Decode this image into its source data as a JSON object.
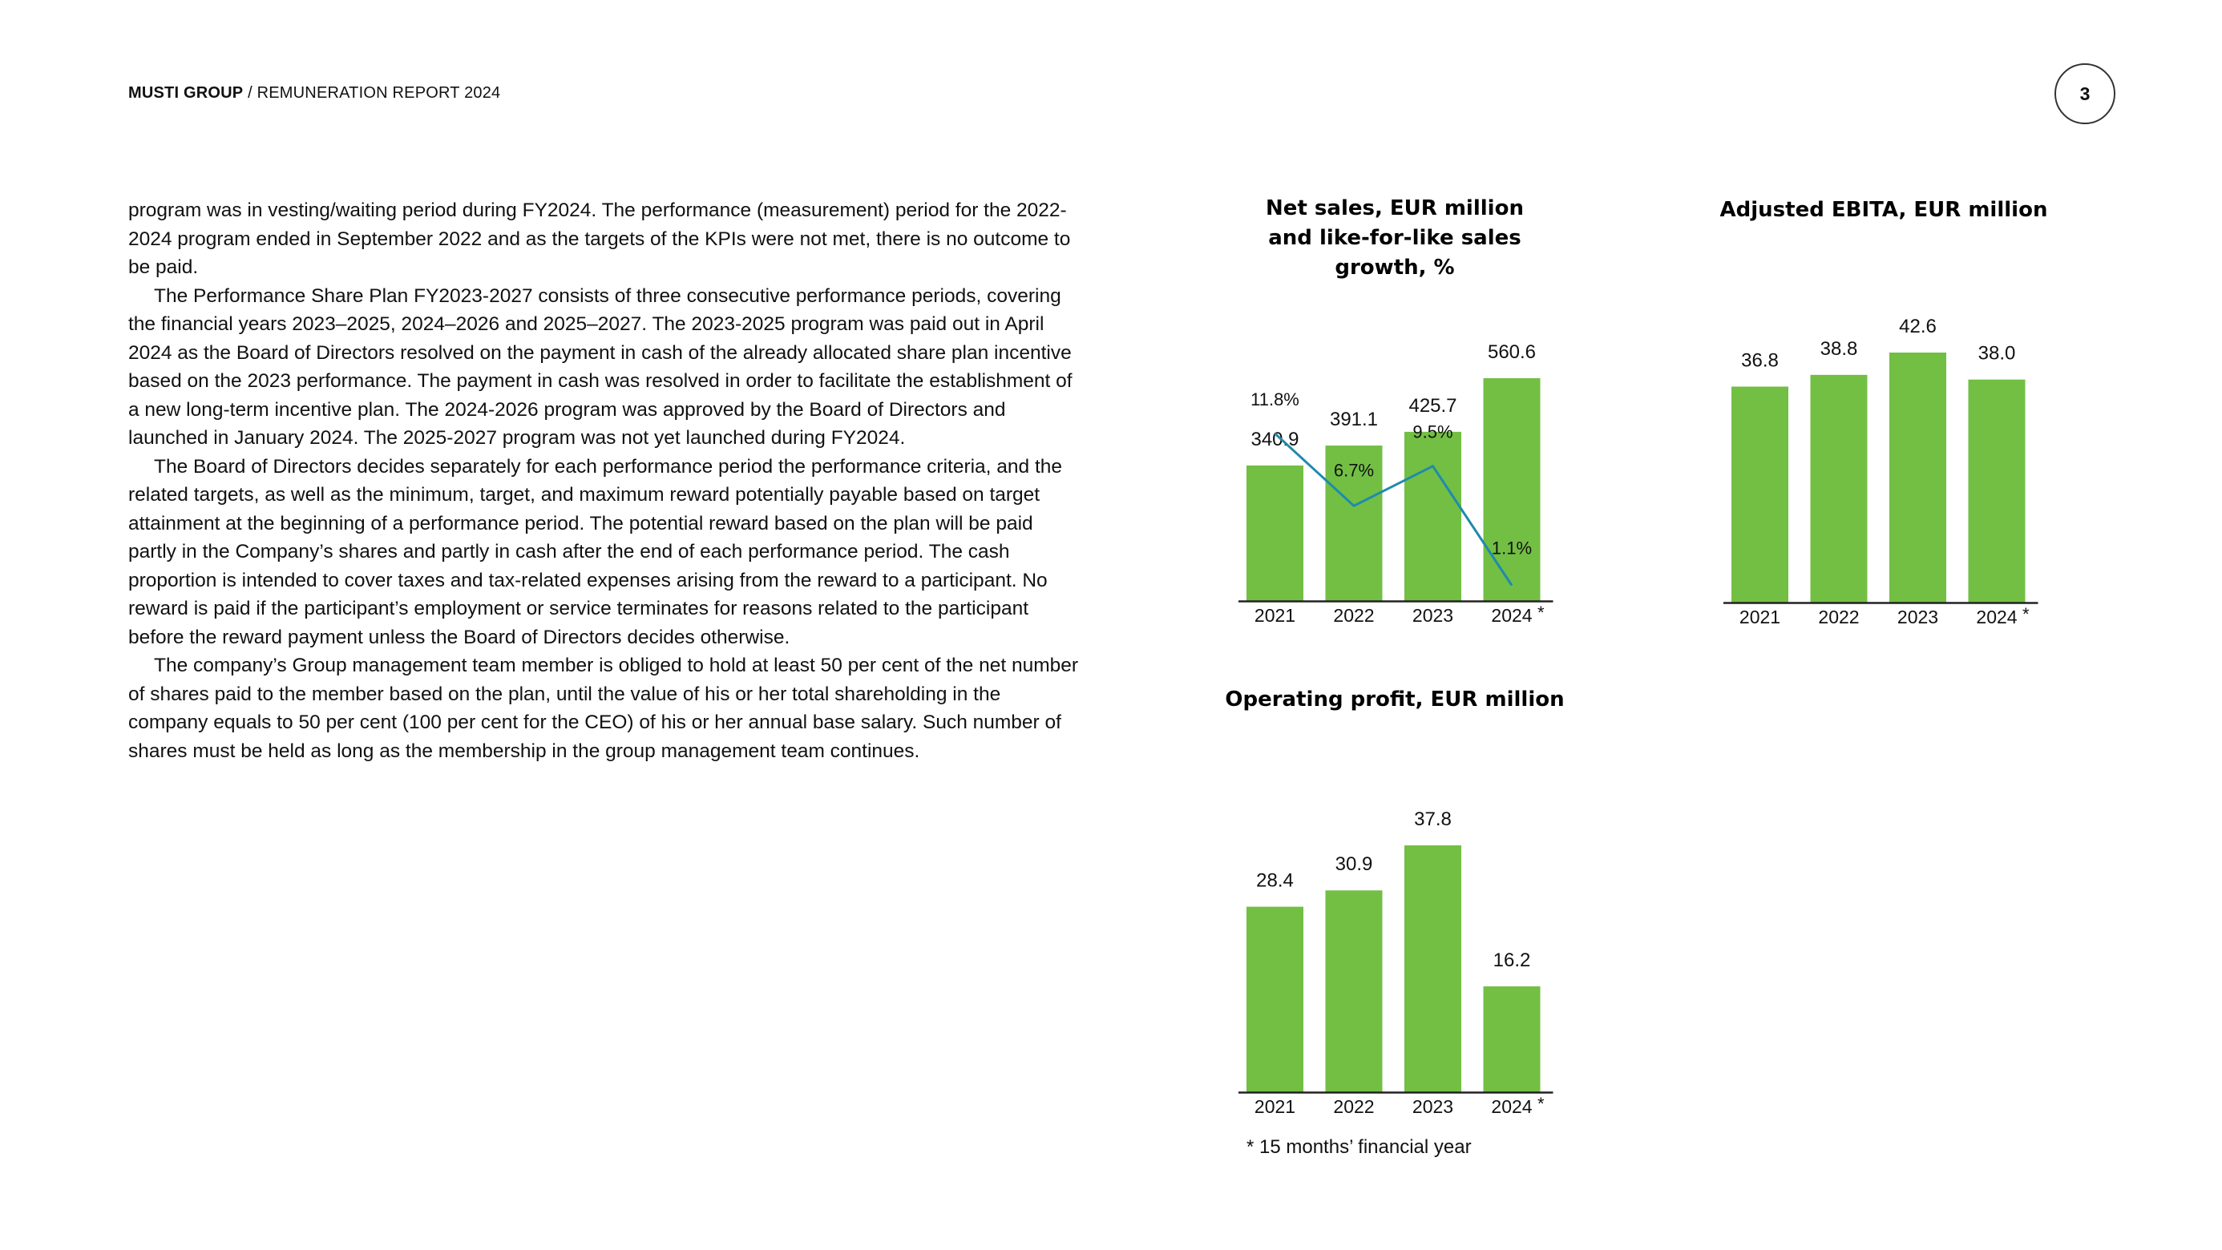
{
  "header": {
    "brand": "MUSTI GROUP",
    "separator": " / ",
    "title": "REMUNERATION REPORT 2024",
    "page_number": "3"
  },
  "body": {
    "p1": "program was in vesting/waiting period during FY2024. The performance (measurement) period for the 2022-2024 program ended in September 2022 and as the targets of the KPIs were not met, there is no outcome to be paid.",
    "p2": "The Performance Share Plan FY2023-2027 consists of three consecutive performance periods, covering the financial years 2023–2025, 2024–2026 and 2025–2027. The 2023-2025 program was paid out in April 2024 as the Board of Directors resolved on the payment in cash of the already allocated share plan incentive based on the 2023 performance. The payment in cash was resolved in order to facilitate the establishment of a new long-term incentive plan. The 2024-2026 program was approved by the Board of Directors and launched in January 2024.  The 2025-2027 program was not yet launched during FY2024.",
    "p3": "The Board of Directors decides separately for each performance period the performance criteria, and the related targets, as well as the minimum, target, and maximum reward potentially payable based on target attainment at the beginning of a performance period. The potential reward based on the plan will be paid partly in the Company’s shares and partly in cash after the end of each performance period. The cash proportion is intended to cover taxes and tax-related expenses arising from the reward to a participant. No reward is paid if the participant’s employment or service terminates for reasons related to the participant before the reward payment unless the Board of Directors decides otherwise.",
    "p4": "The company’s Group management team member is obliged to hold at least 50 per cent of the net number of shares paid to the member based on the plan, until the value of his or her total shareholding in the company equals to 50 per cent (100 per cent for the CEO) of his or her annual base salary. Such number of shares must be held as long as the membership in the group management team continues."
  },
  "colors": {
    "bar": "#72BF44",
    "line": "#1F8AAE",
    "axis": "#222222"
  },
  "footnote": "* 15 months’ financial year",
  "chart_data": [
    {
      "type": "bar",
      "title_lines": [
        "Net sales, EUR million",
        "and like-for-like sales",
        "growth, %"
      ],
      "categories": [
        "2021",
        "2022",
        "2023",
        "2024"
      ],
      "category_suffix": [
        "",
        "",
        "",
        "*"
      ],
      "values": [
        340.9,
        391.1,
        425.7,
        560.6
      ],
      "value_labels": [
        "340.9",
        "391.1",
        "425.7",
        "560.6"
      ],
      "ylim": [
        0,
        560.6
      ],
      "line_series": {
        "type": "line",
        "values": [
          11.8,
          6.7,
          9.5,
          1.1
        ],
        "value_labels": [
          "11.8%",
          "6.7%",
          "9.5%",
          "1.1%"
        ],
        "ylim": [
          0,
          14
        ]
      }
    },
    {
      "type": "bar",
      "title_lines": [
        "Adjusted EBITA, EUR million"
      ],
      "categories": [
        "2021",
        "2022",
        "2023",
        "2024"
      ],
      "category_suffix": [
        "",
        "",
        "",
        "*"
      ],
      "values": [
        36.8,
        38.8,
        42.6,
        38.0
      ],
      "value_labels": [
        "36.8",
        "38.8",
        "42.6",
        "38.0"
      ],
      "ylim": [
        0,
        42.6
      ]
    },
    {
      "type": "bar",
      "title_lines": [
        "Operating profit, EUR million"
      ],
      "categories": [
        "2021",
        "2022",
        "2023",
        "2024"
      ],
      "category_suffix": [
        "",
        "",
        "",
        "*"
      ],
      "values": [
        28.4,
        30.9,
        37.8,
        16.2
      ],
      "value_labels": [
        "28.4",
        "30.9",
        "37.8",
        "16.2"
      ],
      "ylim": [
        0,
        37.8
      ]
    }
  ]
}
